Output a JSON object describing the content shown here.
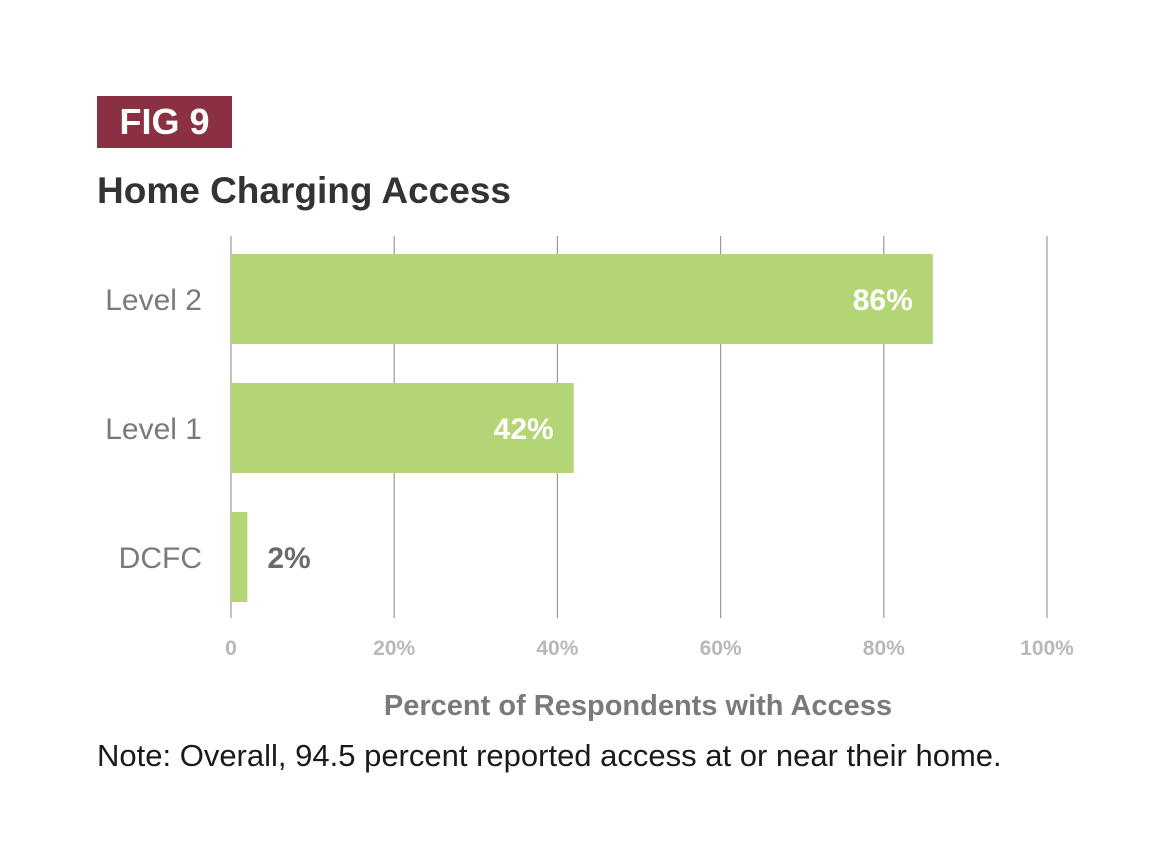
{
  "figure": {
    "label": "FIG 9"
  },
  "note": "Note: Overall, 94.5 percent reported access at or near their home.",
  "colors": {
    "badge": "#8b2f42",
    "bar": "#b4d576",
    "title": "#333333",
    "category_label": "#7a7a7a",
    "inside_value_label": "#ffffff",
    "outside_value_label": "#6b6b6b",
    "tick_label": "#b8b8b8",
    "axis_title": "#7a7a7a",
    "grid": "#9a9a9a"
  },
  "chart_data": {
    "type": "bar",
    "orientation": "horizontal",
    "title": "Home Charging Access",
    "xlabel": "Percent of Respondents with Access",
    "ylabel": "",
    "categories": [
      "Level 2",
      "Level 1",
      "DCFC"
    ],
    "values": [
      86,
      42,
      2
    ],
    "value_labels": [
      "86%",
      "42%",
      "2%"
    ],
    "xlim": [
      0,
      100
    ],
    "xticks": [
      0,
      20,
      40,
      60,
      80,
      100
    ],
    "xtick_labels": [
      "0",
      "20%",
      "40%",
      "60%",
      "80%",
      "100%"
    ],
    "grid": "vertical",
    "legend": "none"
  }
}
